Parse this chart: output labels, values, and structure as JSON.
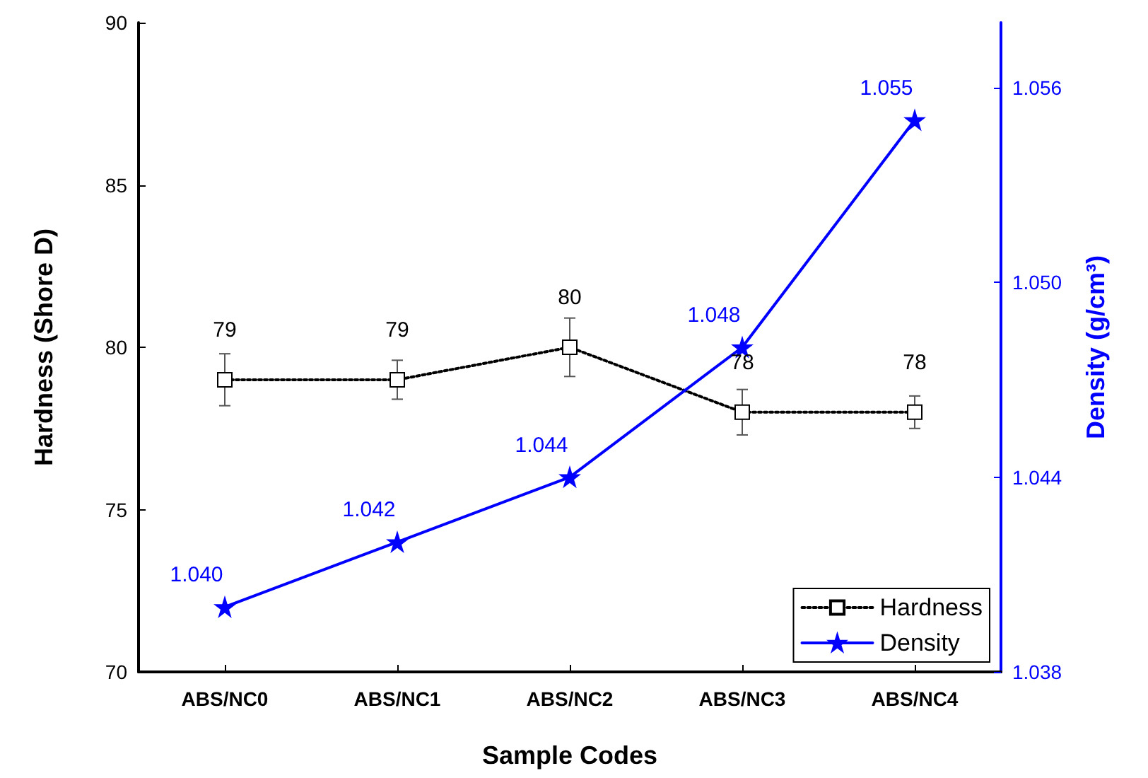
{
  "chart_data": {
    "type": "line",
    "xlabel": "Sample Codes",
    "ylabel": "Hardness (Shore D)",
    "y2label": "Density (g/cm³)",
    "categories": [
      "ABS/NC0",
      "ABS/NC1",
      "ABS/NC2",
      "ABS/NC3",
      "ABS/NC4"
    ],
    "series": [
      {
        "name": "Hardness",
        "color": "#000000",
        "values": [
          79,
          79,
          80,
          78,
          78
        ],
        "errors": [
          0.8,
          0.6,
          0.9,
          0.7,
          0.5
        ],
        "marker": "square",
        "line_style": "dotted",
        "value_labels": [
          "79",
          "79",
          "80",
          "78",
          "78"
        ]
      },
      {
        "name": "Density",
        "color": "#0000ff",
        "axis": "y2",
        "values": [
          1.04,
          1.042,
          1.044,
          1.048,
          1.055
        ],
        "marker": "star",
        "line_style": "solid",
        "value_labels": [
          "1.040",
          "1.042",
          "1.044",
          "1.048",
          "1.055"
        ]
      }
    ],
    "ylim": [
      70,
      90
    ],
    "yticks": [
      70,
      75,
      80,
      85,
      90
    ],
    "y2lim": [
      1.038,
      1.058
    ],
    "y2ticks": [
      {
        "value": 1.038,
        "label": "1.038"
      },
      {
        "value": 1.044,
        "label": "1.044"
      },
      {
        "value": 1.05,
        "label": "1.050"
      },
      {
        "value": 1.056,
        "label": "1.056"
      }
    ],
    "grid": false,
    "legend": "bottom right"
  }
}
